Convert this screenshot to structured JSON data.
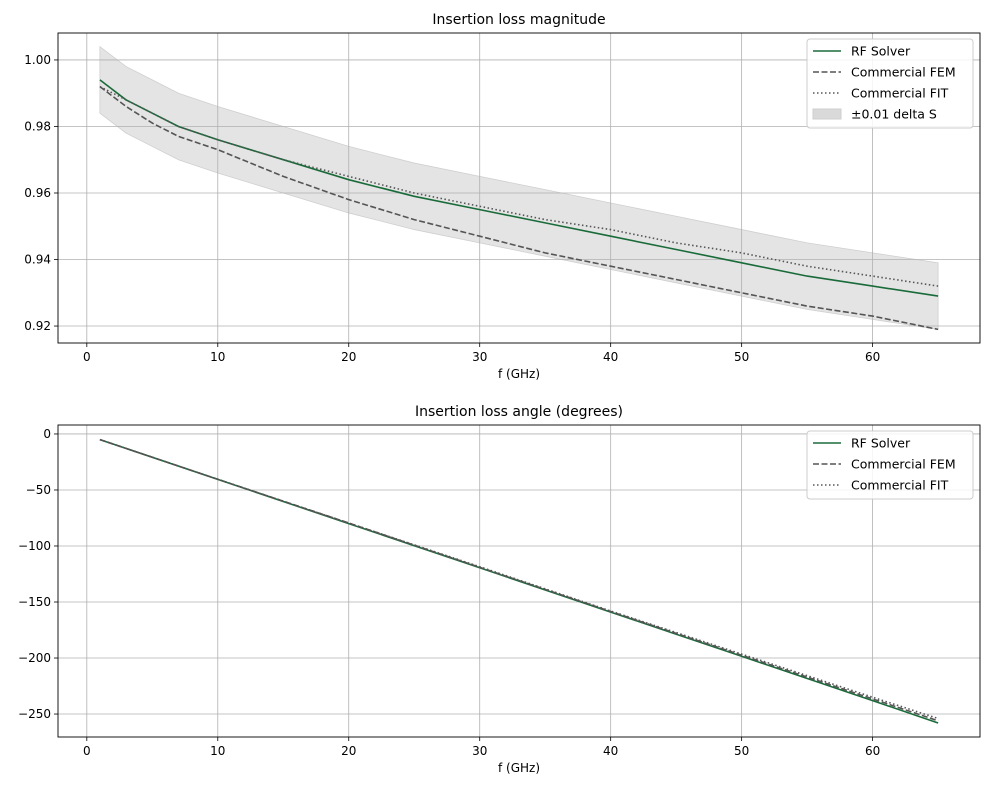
{
  "colors": {
    "rf": "#1a6b3a",
    "fem": "#555555",
    "fit": "#555555",
    "band": "#d9d9d9",
    "grid": "#b0b0b0"
  },
  "chart_data": [
    {
      "type": "line",
      "title": "Insertion loss magnitude",
      "xlabel": "f (GHz)",
      "ylabel": "",
      "xlim": [
        -2.2,
        68.2
      ],
      "ylim": [
        0.9149,
        1.0081
      ],
      "xticks": [
        0,
        10,
        20,
        30,
        40,
        50,
        60
      ],
      "yticks": [
        0.92,
        0.94,
        0.96,
        0.98,
        1.0
      ],
      "ytick_labels": [
        "0.92",
        "0.94",
        "0.96",
        "0.98",
        "1.00"
      ],
      "grid": true,
      "legend": "top-right",
      "x": [
        1,
        3,
        5,
        7,
        10,
        15,
        20,
        25,
        30,
        35,
        40,
        45,
        50,
        55,
        60,
        65
      ],
      "series": [
        {
          "name": "RF Solver",
          "style": "solid",
          "values": [
            0.994,
            0.988,
            0.984,
            0.98,
            0.976,
            0.97,
            0.964,
            0.959,
            0.955,
            0.951,
            0.947,
            0.943,
            0.939,
            0.935,
            0.932,
            0.929
          ]
        },
        {
          "name": "Commercial FEM",
          "style": "dashed",
          "values": [
            0.992,
            0.986,
            0.981,
            0.977,
            0.973,
            0.965,
            0.958,
            0.952,
            0.947,
            0.942,
            0.938,
            0.934,
            0.93,
            0.926,
            0.923,
            0.919
          ]
        },
        {
          "name": "Commercial FIT",
          "style": "dotted",
          "values": [
            0.992,
            0.988,
            0.984,
            0.98,
            0.976,
            0.97,
            0.965,
            0.96,
            0.956,
            0.952,
            0.949,
            0.945,
            0.942,
            0.938,
            0.935,
            0.932
          ]
        }
      ],
      "band": {
        "name": "±0.01 delta S",
        "delta": 0.01
      }
    },
    {
      "type": "line",
      "title": "Insertion loss angle (degrees)",
      "xlabel": "f (GHz)",
      "ylabel": "",
      "xlim": [
        -2.2,
        68.2
      ],
      "ylim": [
        -270.5,
        8
      ],
      "xticks": [
        0,
        10,
        20,
        30,
        40,
        50,
        60
      ],
      "yticks": [
        -250,
        -200,
        -150,
        -100,
        -50,
        0
      ],
      "ytick_labels": [
        "−250",
        "−200",
        "−150",
        "−100",
        "−50",
        "0"
      ],
      "grid": true,
      "legend": "top-right",
      "x": [
        1,
        10,
        20,
        30,
        40,
        50,
        60,
        65
      ],
      "series": [
        {
          "name": "RF Solver",
          "style": "solid",
          "values": [
            -5,
            -40.6,
            -80,
            -119.5,
            -159,
            -198.5,
            -238,
            -258
          ]
        },
        {
          "name": "Commercial FEM",
          "style": "dashed",
          "values": [
            -5,
            -40.5,
            -79.5,
            -119,
            -158.5,
            -197.5,
            -236.5,
            -256
          ]
        },
        {
          "name": "Commercial FIT",
          "style": "dotted",
          "values": [
            -5,
            -40.5,
            -79.5,
            -118.5,
            -158,
            -196.5,
            -235,
            -254
          ]
        }
      ]
    }
  ]
}
